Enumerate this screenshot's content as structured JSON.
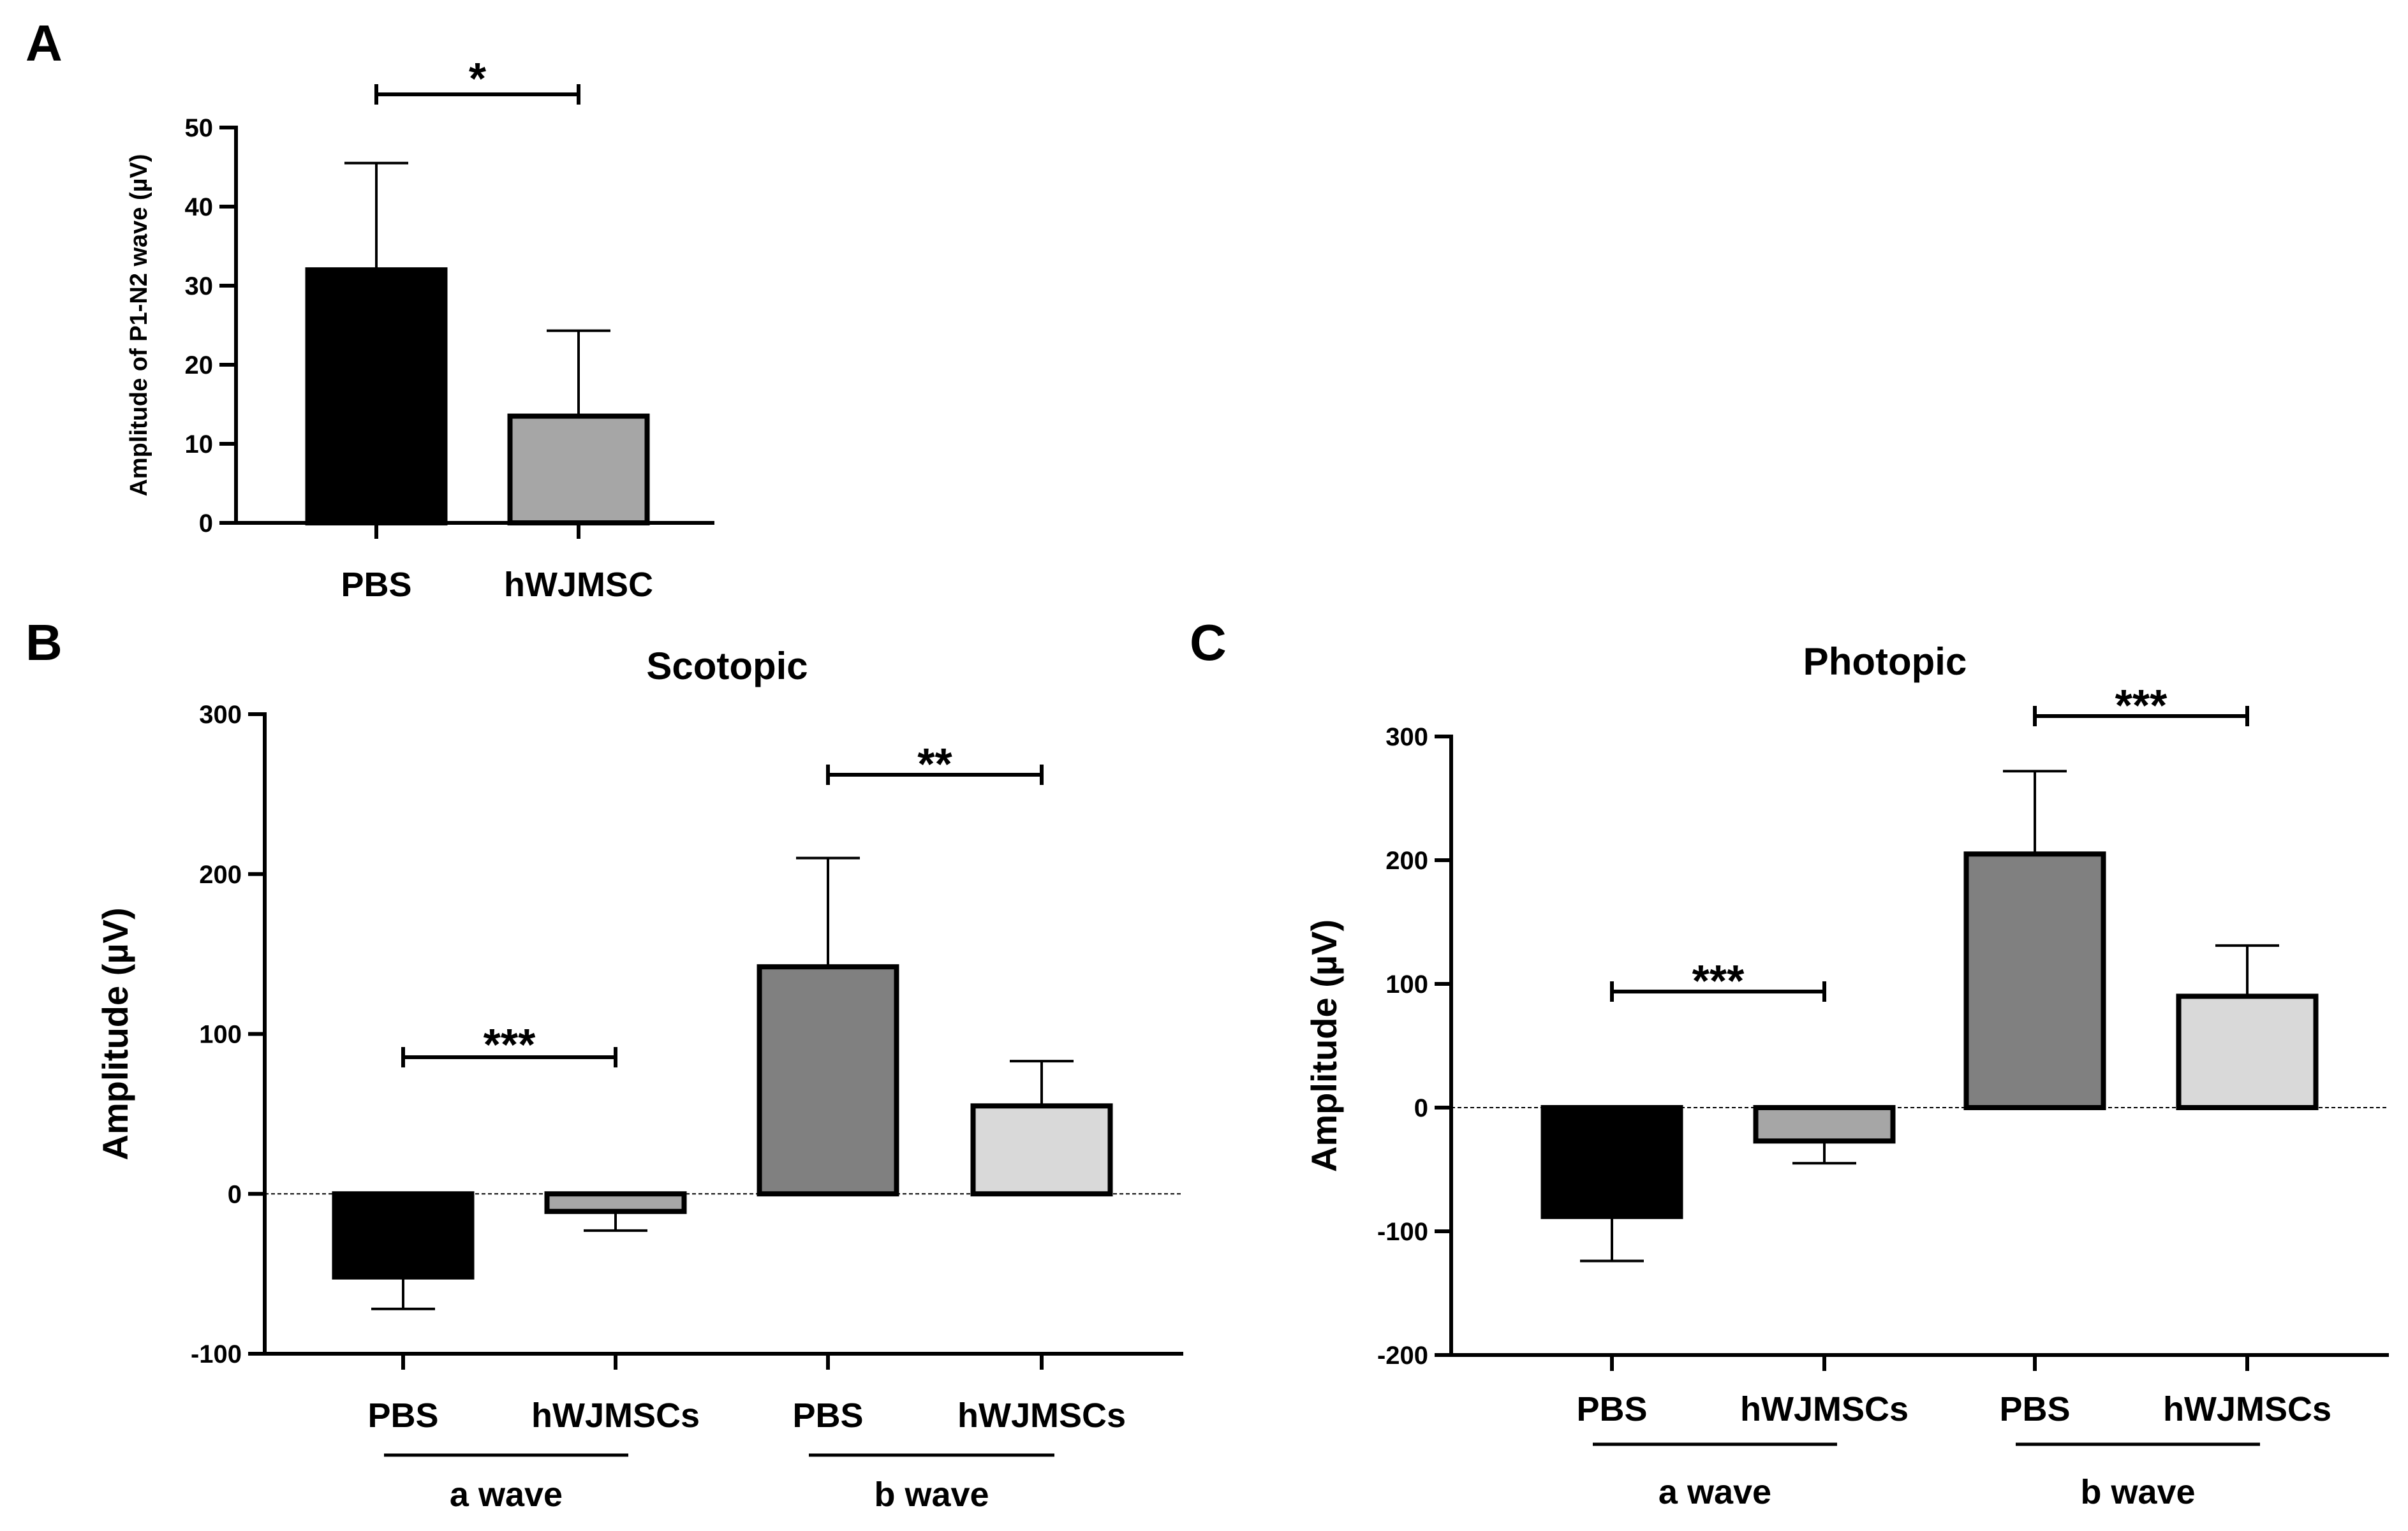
{
  "chart_data": [
    {
      "panel": "A",
      "type": "bar",
      "title": "",
      "ylabel": "Amplitude of P1-N2 wave (µV)",
      "xlabel": "",
      "ylim": [
        0,
        50
      ],
      "yticks": [
        "0",
        "10",
        "20",
        "30",
        "40",
        "50"
      ],
      "categories": [
        "PBS",
        "hWJMSC"
      ],
      "values": [
        32,
        13.5
      ],
      "errors": [
        13.5,
        10.8
      ],
      "colors": [
        "#000000",
        "#a6a6a6"
      ],
      "significance": [
        {
          "from": 0,
          "to": 1,
          "label": "*"
        }
      ],
      "groups": []
    },
    {
      "panel": "B",
      "type": "bar",
      "title": "Scotopic",
      "ylabel": "Amplitude (µV)",
      "xlabel": "",
      "ylim": [
        -100,
        300
      ],
      "yticks": [
        "-100",
        "0",
        "100",
        "200",
        "300"
      ],
      "categories": [
        "PBS",
        "hWJMSCs",
        "PBS",
        "hWJMSCs"
      ],
      "values": [
        -52,
        -11,
        142,
        55
      ],
      "errors": [
        20,
        12,
        68,
        28
      ],
      "colors": [
        "#000000",
        "#a6a6a6",
        "#808080",
        "#d9d9d9"
      ],
      "significance": [
        {
          "from": 0,
          "to": 1,
          "label": "***"
        },
        {
          "from": 2,
          "to": 3,
          "label": "**"
        }
      ],
      "groups": [
        {
          "label": "a wave",
          "from": 0,
          "to": 1
        },
        {
          "label": "b wave",
          "from": 2,
          "to": 3
        }
      ]
    },
    {
      "panel": "C",
      "type": "bar",
      "title": "Photopic",
      "ylabel": "Amplitude (µV)",
      "xlabel": "",
      "ylim": [
        -200,
        300
      ],
      "yticks": [
        "-200",
        "-100",
        "0",
        "100",
        "200",
        "300"
      ],
      "categories": [
        "PBS",
        "hWJMSCs",
        "PBS",
        "hWJMSCs"
      ],
      "values": [
        -88,
        -27,
        205,
        90
      ],
      "errors": [
        36,
        18,
        67,
        41
      ],
      "colors": [
        "#000000",
        "#a6a6a6",
        "#808080",
        "#d9d9d9"
      ],
      "significance": [
        {
          "from": 0,
          "to": 1,
          "label": "***"
        },
        {
          "from": 2,
          "to": 3,
          "label": "***"
        }
      ],
      "groups": [
        {
          "label": "a wave",
          "from": 0,
          "to": 1
        },
        {
          "label": "b wave",
          "from": 2,
          "to": 3
        }
      ]
    }
  ]
}
